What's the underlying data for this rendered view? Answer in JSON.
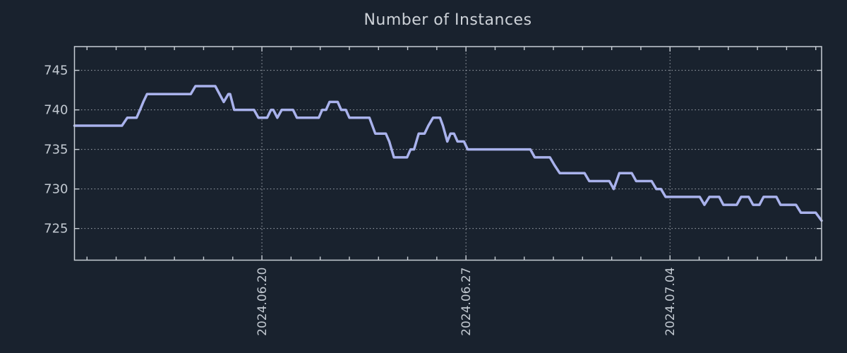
{
  "title": "Number of Instances",
  "colors": {
    "background": "#19222E",
    "line": "#A9B2EC",
    "axis": "#C8CED5",
    "grid": "#C8CED5",
    "tick_label": "#C2C9D1",
    "title_text": "#CDD2D8"
  },
  "chart_data": {
    "type": "line",
    "title": "Number of Instances",
    "xlabel": "",
    "ylabel": "",
    "legend": "none",
    "grid": "dotted at labeled ticks, weekly vertical / every-5 horizontal",
    "x_unit": "days since 2024-06-20",
    "xlim": [
      -6.43,
      19.2
    ],
    "ylim": [
      721,
      748
    ],
    "y_ticks": [
      725,
      730,
      735,
      740,
      745
    ],
    "x_ticks_major": [
      {
        "t": 0,
        "label": "2024.06.20"
      },
      {
        "t": 7,
        "label": "2024.06.27"
      },
      {
        "t": 14,
        "label": "2024.07.04"
      }
    ],
    "x_minor_step_days": 1,
    "series": [
      {
        "name": "instances",
        "points": [
          [
            -6.43,
            738
          ],
          [
            -4.8,
            738
          ],
          [
            -4.62,
            739
          ],
          [
            -4.3,
            739
          ],
          [
            -4.18,
            740
          ],
          [
            -4.07,
            741
          ],
          [
            -3.94,
            742
          ],
          [
            -2.44,
            742
          ],
          [
            -2.28,
            743
          ],
          [
            -1.6,
            743
          ],
          [
            -1.31,
            741
          ],
          [
            -1.15,
            742
          ],
          [
            -1.09,
            742
          ],
          [
            -0.95,
            740
          ],
          [
            -0.27,
            740
          ],
          [
            -0.12,
            739
          ],
          [
            0.18,
            739
          ],
          [
            0.31,
            740
          ],
          [
            0.39,
            740
          ],
          [
            0.53,
            739
          ],
          [
            0.68,
            740
          ],
          [
            1.07,
            740
          ],
          [
            1.2,
            739
          ],
          [
            1.95,
            739
          ],
          [
            2.07,
            740
          ],
          [
            2.2,
            740
          ],
          [
            2.32,
            741
          ],
          [
            2.6,
            741
          ],
          [
            2.72,
            740
          ],
          [
            2.88,
            740
          ],
          [
            3.0,
            739
          ],
          [
            3.69,
            739
          ],
          [
            3.89,
            737
          ],
          [
            4.25,
            737
          ],
          [
            4.37,
            736
          ],
          [
            4.53,
            734
          ],
          [
            4.98,
            734
          ],
          [
            5.1,
            735
          ],
          [
            5.22,
            735
          ],
          [
            5.38,
            737
          ],
          [
            5.58,
            737
          ],
          [
            5.71,
            738
          ],
          [
            5.87,
            739
          ],
          [
            6.11,
            739
          ],
          [
            6.21,
            738
          ],
          [
            6.36,
            736
          ],
          [
            6.47,
            737
          ],
          [
            6.59,
            737
          ],
          [
            6.71,
            736
          ],
          [
            6.93,
            736
          ],
          [
            7.06,
            735
          ],
          [
            9.21,
            735
          ],
          [
            9.36,
            734
          ],
          [
            9.88,
            734
          ],
          [
            10.04,
            733
          ],
          [
            10.22,
            732
          ],
          [
            11.07,
            732
          ],
          [
            11.23,
            731
          ],
          [
            11.92,
            731
          ],
          [
            12.07,
            730
          ],
          [
            12.26,
            732
          ],
          [
            12.69,
            732
          ],
          [
            12.84,
            731
          ],
          [
            13.37,
            731
          ],
          [
            13.53,
            730
          ],
          [
            13.69,
            730
          ],
          [
            13.85,
            729
          ],
          [
            15.02,
            729
          ],
          [
            15.18,
            728
          ],
          [
            15.35,
            729
          ],
          [
            15.69,
            729
          ],
          [
            15.83,
            728
          ],
          [
            16.29,
            728
          ],
          [
            16.44,
            729
          ],
          [
            16.7,
            729
          ],
          [
            16.85,
            728
          ],
          [
            17.07,
            728
          ],
          [
            17.21,
            729
          ],
          [
            17.65,
            729
          ],
          [
            17.79,
            728
          ],
          [
            18.32,
            728
          ],
          [
            18.49,
            727
          ],
          [
            19.0,
            727
          ],
          [
            19.2,
            726
          ]
        ]
      }
    ]
  }
}
